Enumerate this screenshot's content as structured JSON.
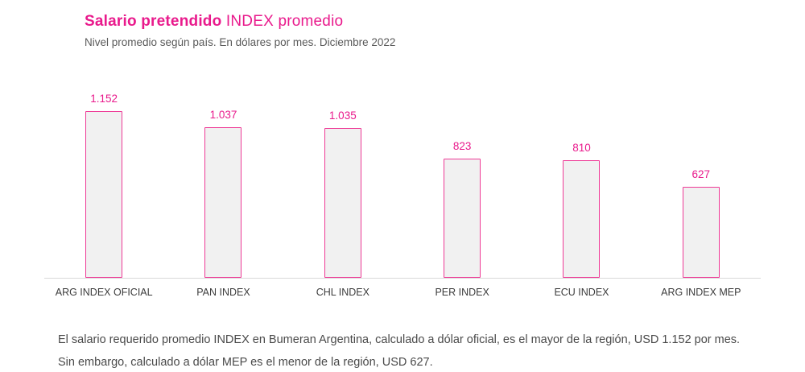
{
  "header": {
    "title_bold": "Salario pretendido",
    "title_rest": "INDEX promedio",
    "subtitle": "Nivel promedio según país. En dólares por mes. Diciembre 2022"
  },
  "chart_data": {
    "type": "bar",
    "title": "Salario pretendido INDEX promedio",
    "subtitle": "Nivel promedio según país. En dólares por mes. Diciembre 2022",
    "categories": [
      "ARG INDEX OFICIAL",
      "PAN INDEX",
      "CHL INDEX",
      "PER INDEX",
      "ECU INDEX",
      "ARG INDEX MEP"
    ],
    "values": [
      1152,
      1037,
      1035,
      823,
      810,
      627
    ],
    "value_labels": [
      "1.152",
      "1.037",
      "1.035",
      "823",
      "810",
      "627"
    ],
    "unit": "USD por mes",
    "ylim": [
      0,
      1200
    ],
    "grid": false,
    "legend": "none",
    "bar_style": {
      "fill": "#f1f1f1",
      "border": "#ee3a96"
    }
  },
  "footer": {
    "text": "El salario requerido promedio INDEX en Bumeran Argentina, calculado a dólar oficial, es el mayor de la región, USD 1.152 por mes. Sin embargo, calculado a dólar MEP es el menor de la región, USD 627."
  },
  "colors": {
    "accent": "#e91a8c",
    "bar_fill": "#f1f1f1",
    "bar_border": "#ee3a96",
    "axis": "#d9d9d9",
    "text_muted": "#5a5a5a",
    "text_body": "#4a4a4a"
  }
}
